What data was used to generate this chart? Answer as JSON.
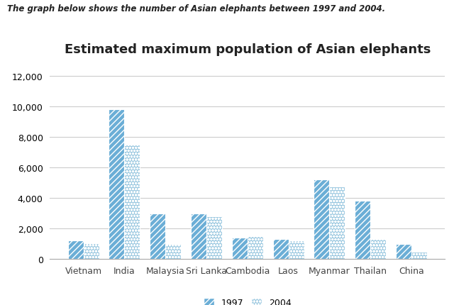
{
  "title": "Estimated maximum population of Asian elephants",
  "supertitle": "The graph below shows the number of Asian elephants between 1997 and 2004.",
  "categories": [
    "Vietnam",
    "India",
    "Malaysia",
    "Sri Lanka",
    "Cambodia",
    "Laos",
    "Myanmar",
    "Thailan",
    "China"
  ],
  "values_1997": [
    1200,
    9800,
    3000,
    3000,
    1400,
    1300,
    5200,
    3800,
    1000
  ],
  "values_2004": [
    1050,
    7500,
    1000,
    2800,
    1500,
    1200,
    4750,
    1300,
    500
  ],
  "color_1997": "#6BAED6",
  "color_2004": "#9ECAE1",
  "hatch_1997": "////",
  "hatch_2004": "oooo",
  "ylim": [
    0,
    13000
  ],
  "yticks": [
    0,
    2000,
    4000,
    6000,
    8000,
    10000,
    12000
  ],
  "legend_labels": [
    "1997",
    "2004"
  ],
  "bar_width": 0.38,
  "title_fontsize": 13,
  "tick_fontsize": 9,
  "legend_fontsize": 9,
  "background_color": "#ffffff",
  "grid_color": "#cccccc"
}
